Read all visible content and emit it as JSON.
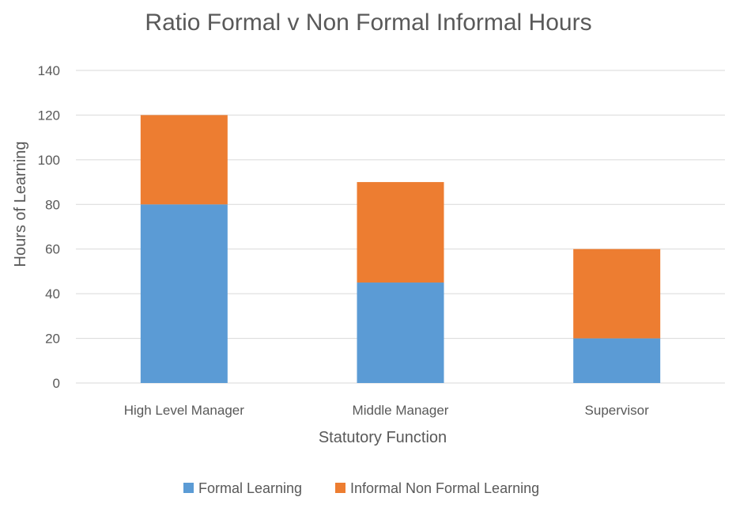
{
  "chart_data": {
    "type": "bar",
    "stacked": true,
    "title": "Ratio Formal v Non Formal Informal Hours",
    "xlabel": "Statutory Function",
    "ylabel": "Hours of Learning",
    "categories": [
      "High Level Manager",
      "Middle Manager",
      "Supervisor"
    ],
    "series": [
      {
        "name": "Formal Learning",
        "values": [
          80,
          45,
          20
        ],
        "color": "#5b9bd5"
      },
      {
        "name": "Informal Non Formal Learning",
        "values": [
          40,
          45,
          40
        ],
        "color": "#ed7d31"
      }
    ],
    "ylim": [
      0,
      140
    ],
    "yticks": [
      0,
      20,
      40,
      60,
      80,
      100,
      120,
      140
    ],
    "grid": true,
    "legend_position": "bottom"
  }
}
